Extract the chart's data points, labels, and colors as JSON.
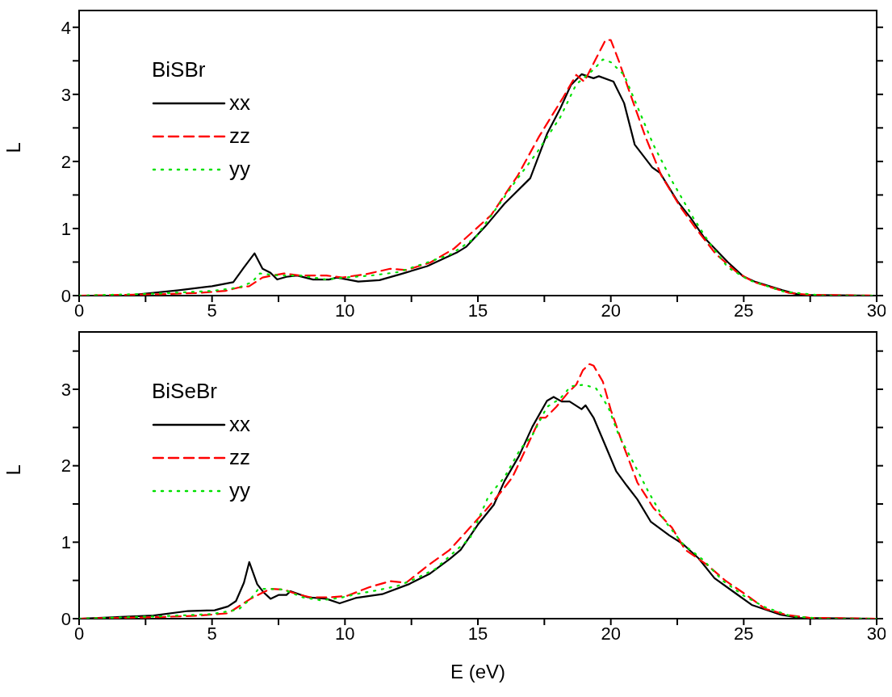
{
  "chart_data": [
    {
      "type": "line",
      "ylabel": "L",
      "legend_title": "BiSBr",
      "legend": "top left",
      "marker": "none",
      "xlim": [
        0,
        30
      ],
      "xticks": [
        0,
        {
          "value": 2.5,
          "label": null
        },
        5,
        {
          "value": 7.5,
          "label": null
        },
        10,
        {
          "value": 12.5,
          "label": null
        },
        15,
        {
          "value": 17.5,
          "label": null
        },
        20,
        {
          "value": 22.5,
          "label": null
        },
        25,
        {
          "value": 27.5,
          "label": null
        },
        30
      ],
      "ylim": [
        0,
        4.25
      ],
      "yticks": [
        0,
        {
          "value": 0.5,
          "label": null
        },
        1,
        {
          "value": 1.5,
          "label": null
        },
        2,
        {
          "value": 2.5,
          "label": null
        },
        3,
        {
          "value": 3.5,
          "label": null
        },
        4
      ],
      "series": [
        {
          "name": "xx",
          "color": "#000000",
          "line_style": "solid",
          "x": [
            0,
            1.75,
            3.75,
            5,
            5.8,
            6.2,
            6.6,
            6.9,
            7.2,
            7.45,
            7.8,
            8.2,
            8.8,
            9.4,
            9.7,
            10.5,
            11.3,
            12.1,
            13.1,
            14.2,
            14.57,
            15.3,
            16.0,
            16.97,
            17.6,
            18.1,
            18.5,
            18.9,
            19.35,
            19.55,
            20.1,
            20.5,
            20.9,
            21.56,
            21.85,
            22.5,
            23.0,
            23.5,
            24.4,
            24.97,
            25.4,
            26.46,
            27.1,
            30
          ],
          "values": [
            0,
            0,
            0.08,
            0.14,
            0.2,
            0.42,
            0.63,
            0.4,
            0.34,
            0.24,
            0.28,
            0.3,
            0.24,
            0.24,
            0.27,
            0.21,
            0.23,
            0.32,
            0.44,
            0.64,
            0.73,
            1.04,
            1.37,
            1.75,
            2.41,
            2.79,
            3.14,
            3.3,
            3.24,
            3.27,
            3.19,
            2.87,
            2.25,
            1.91,
            1.83,
            1.41,
            1.16,
            0.87,
            0.5,
            0.29,
            0.21,
            0.08,
            0.01,
            0
          ]
        },
        {
          "name": "zz",
          "color": "#ff0000",
          "line_style": "dashed",
          "x": [
            0,
            3,
            4.5,
            5.5,
            6,
            6.4,
            6.9,
            7.7,
            8.3,
            9.3,
            9.9,
            10.8,
            11.7,
            12.3,
            13.2,
            14.1,
            14.8,
            15.5,
            16.5,
            17.3,
            18.2,
            18.7,
            19.0,
            19.35,
            19.8,
            20.0,
            20.3,
            20.7,
            21.3,
            21.9,
            22.6,
            23.2,
            23.95,
            24.8,
            25.4,
            26.7,
            27.5,
            30
          ],
          "values": [
            0,
            0.02,
            0.04,
            0.07,
            0.12,
            0.14,
            0.27,
            0.33,
            0.3,
            0.3,
            0.27,
            0.32,
            0.4,
            0.38,
            0.49,
            0.7,
            0.95,
            1.2,
            1.79,
            2.37,
            2.95,
            3.29,
            3.19,
            3.46,
            3.81,
            3.81,
            3.5,
            3.04,
            2.37,
            1.79,
            1.33,
            1.0,
            0.62,
            0.33,
            0.2,
            0.04,
            0.01,
            0
          ]
        },
        {
          "name": "yy",
          "color": "#00e000",
          "line_style": "dotted",
          "x": [
            0,
            3,
            5,
            6,
            6.5,
            6.8,
            7.5,
            8.3,
            9.3,
            10,
            11,
            12,
            13,
            14,
            14.9,
            16.5,
            17.2,
            18.1,
            18.7,
            19.35,
            19.7,
            20.0,
            20.5,
            20.9,
            21.6,
            22.3,
            23.1,
            23.7,
            24.4,
            25.2,
            26.5,
            28,
            30
          ],
          "values": [
            0,
            0.03,
            0.07,
            0.12,
            0.2,
            0.33,
            0.3,
            0.3,
            0.24,
            0.27,
            0.3,
            0.35,
            0.48,
            0.62,
            0.86,
            1.75,
            2.12,
            2.66,
            3.15,
            3.37,
            3.52,
            3.48,
            3.29,
            2.91,
            2.25,
            1.71,
            1.16,
            0.79,
            0.42,
            0.23,
            0.06,
            0,
            0
          ]
        }
      ]
    },
    {
      "type": "line",
      "xlabel": "E (eV)",
      "ylabel": "L",
      "legend_title": "BiSeBr",
      "legend": "top left",
      "marker": "none",
      "xlim": [
        0,
        30
      ],
      "xticks": [
        0,
        {
          "value": 2.5,
          "label": null
        },
        5,
        {
          "value": 7.5,
          "label": null
        },
        10,
        {
          "value": 12.5,
          "label": null
        },
        15,
        {
          "value": 17.5,
          "label": null
        },
        20,
        {
          "value": 22.5,
          "label": null
        },
        25,
        {
          "value": 27.5,
          "label": null
        },
        30
      ],
      "ylim": [
        0,
        3.75
      ],
      "yticks": [
        0,
        {
          "value": 0.5,
          "label": null
        },
        1,
        {
          "value": 1.5,
          "label": null
        },
        2,
        {
          "value": 2.5,
          "label": null
        },
        3,
        {
          "value": 3.5,
          "label": null
        }
      ],
      "series": [
        {
          "name": "xx",
          "color": "#000000",
          "line_style": "solid",
          "x": [
            0,
            2.8,
            4.1,
            5.1,
            5.6,
            5.9,
            6.2,
            6.4,
            6.7,
            6.95,
            7.2,
            7.5,
            7.8,
            7.95,
            8.6,
            9.3,
            9.8,
            10.4,
            11.4,
            12.4,
            13.2,
            13.94,
            14.35,
            15.0,
            15.6,
            16.0,
            16.55,
            17.05,
            17.6,
            17.85,
            18.15,
            18.45,
            18.9,
            19.05,
            19.35,
            19.8,
            20.2,
            20.6,
            21.0,
            21.5,
            22.2,
            22.7,
            23.3,
            23.9,
            24.7,
            25.3,
            26.4,
            27.1,
            30
          ],
          "values": [
            0,
            0.04,
            0.1,
            0.11,
            0.16,
            0.23,
            0.47,
            0.74,
            0.45,
            0.34,
            0.26,
            0.31,
            0.31,
            0.36,
            0.28,
            0.26,
            0.2,
            0.27,
            0.32,
            0.45,
            0.59,
            0.78,
            0.9,
            1.23,
            1.49,
            1.8,
            2.13,
            2.51,
            2.85,
            2.9,
            2.84,
            2.84,
            2.74,
            2.79,
            2.63,
            2.26,
            1.93,
            1.74,
            1.56,
            1.27,
            1.09,
            0.98,
            0.79,
            0.53,
            0.33,
            0.18,
            0.05,
            0.01,
            0
          ]
        },
        {
          "name": "zz",
          "color": "#ff0000",
          "line_style": "dashed",
          "x": [
            0,
            3,
            4.5,
            5.6,
            6.45,
            6.9,
            7.2,
            7.7,
            8.2,
            8.7,
            9.5,
            10.1,
            10.9,
            11.7,
            12.3,
            13.1,
            13.94,
            14.7,
            15.3,
            15.9,
            16.3,
            16.75,
            17.35,
            17.55,
            17.95,
            18.4,
            18.7,
            18.95,
            19.2,
            19.35,
            19.7,
            20.0,
            20.4,
            21.0,
            21.6,
            22.3,
            22.8,
            23.6,
            24.3,
            25.1,
            25.8,
            26.6,
            27.5,
            30
          ],
          "values": [
            0,
            0.02,
            0.04,
            0.07,
            0.26,
            0.34,
            0.39,
            0.38,
            0.32,
            0.28,
            0.28,
            0.3,
            0.41,
            0.49,
            0.47,
            0.69,
            0.9,
            1.19,
            1.42,
            1.67,
            1.85,
            2.18,
            2.63,
            2.63,
            2.77,
            2.96,
            3.06,
            3.25,
            3.33,
            3.31,
            3.1,
            2.73,
            2.33,
            1.78,
            1.45,
            1.19,
            0.9,
            0.71,
            0.5,
            0.31,
            0.13,
            0.05,
            0.01,
            0
          ]
        },
        {
          "name": "yy",
          "color": "#00e000",
          "line_style": "dotted",
          "x": [
            0,
            3,
            5,
            6,
            6.45,
            6.75,
            7.1,
            7.7,
            8.4,
            9.1,
            9.8,
            10.4,
            11.2,
            12.0,
            12.7,
            13.4,
            14.2,
            14.7,
            15.4,
            16.0,
            16.6,
            17.05,
            17.6,
            18.1,
            18.5,
            19.0,
            19.45,
            19.9,
            20.3,
            20.85,
            21.4,
            22.05,
            22.7,
            23.5,
            24.2,
            25.0,
            25.8,
            26.8,
            28,
            30
          ],
          "values": [
            0,
            0.03,
            0.06,
            0.12,
            0.26,
            0.39,
            0.39,
            0.38,
            0.28,
            0.24,
            0.27,
            0.32,
            0.37,
            0.43,
            0.53,
            0.65,
            0.9,
            1.05,
            1.6,
            1.85,
            2.22,
            2.4,
            2.77,
            2.88,
            3.04,
            3.06,
            3.01,
            2.77,
            2.4,
            2.04,
            1.67,
            1.27,
            0.98,
            0.76,
            0.5,
            0.3,
            0.15,
            0.03,
            0,
            0
          ]
        }
      ]
    }
  ]
}
